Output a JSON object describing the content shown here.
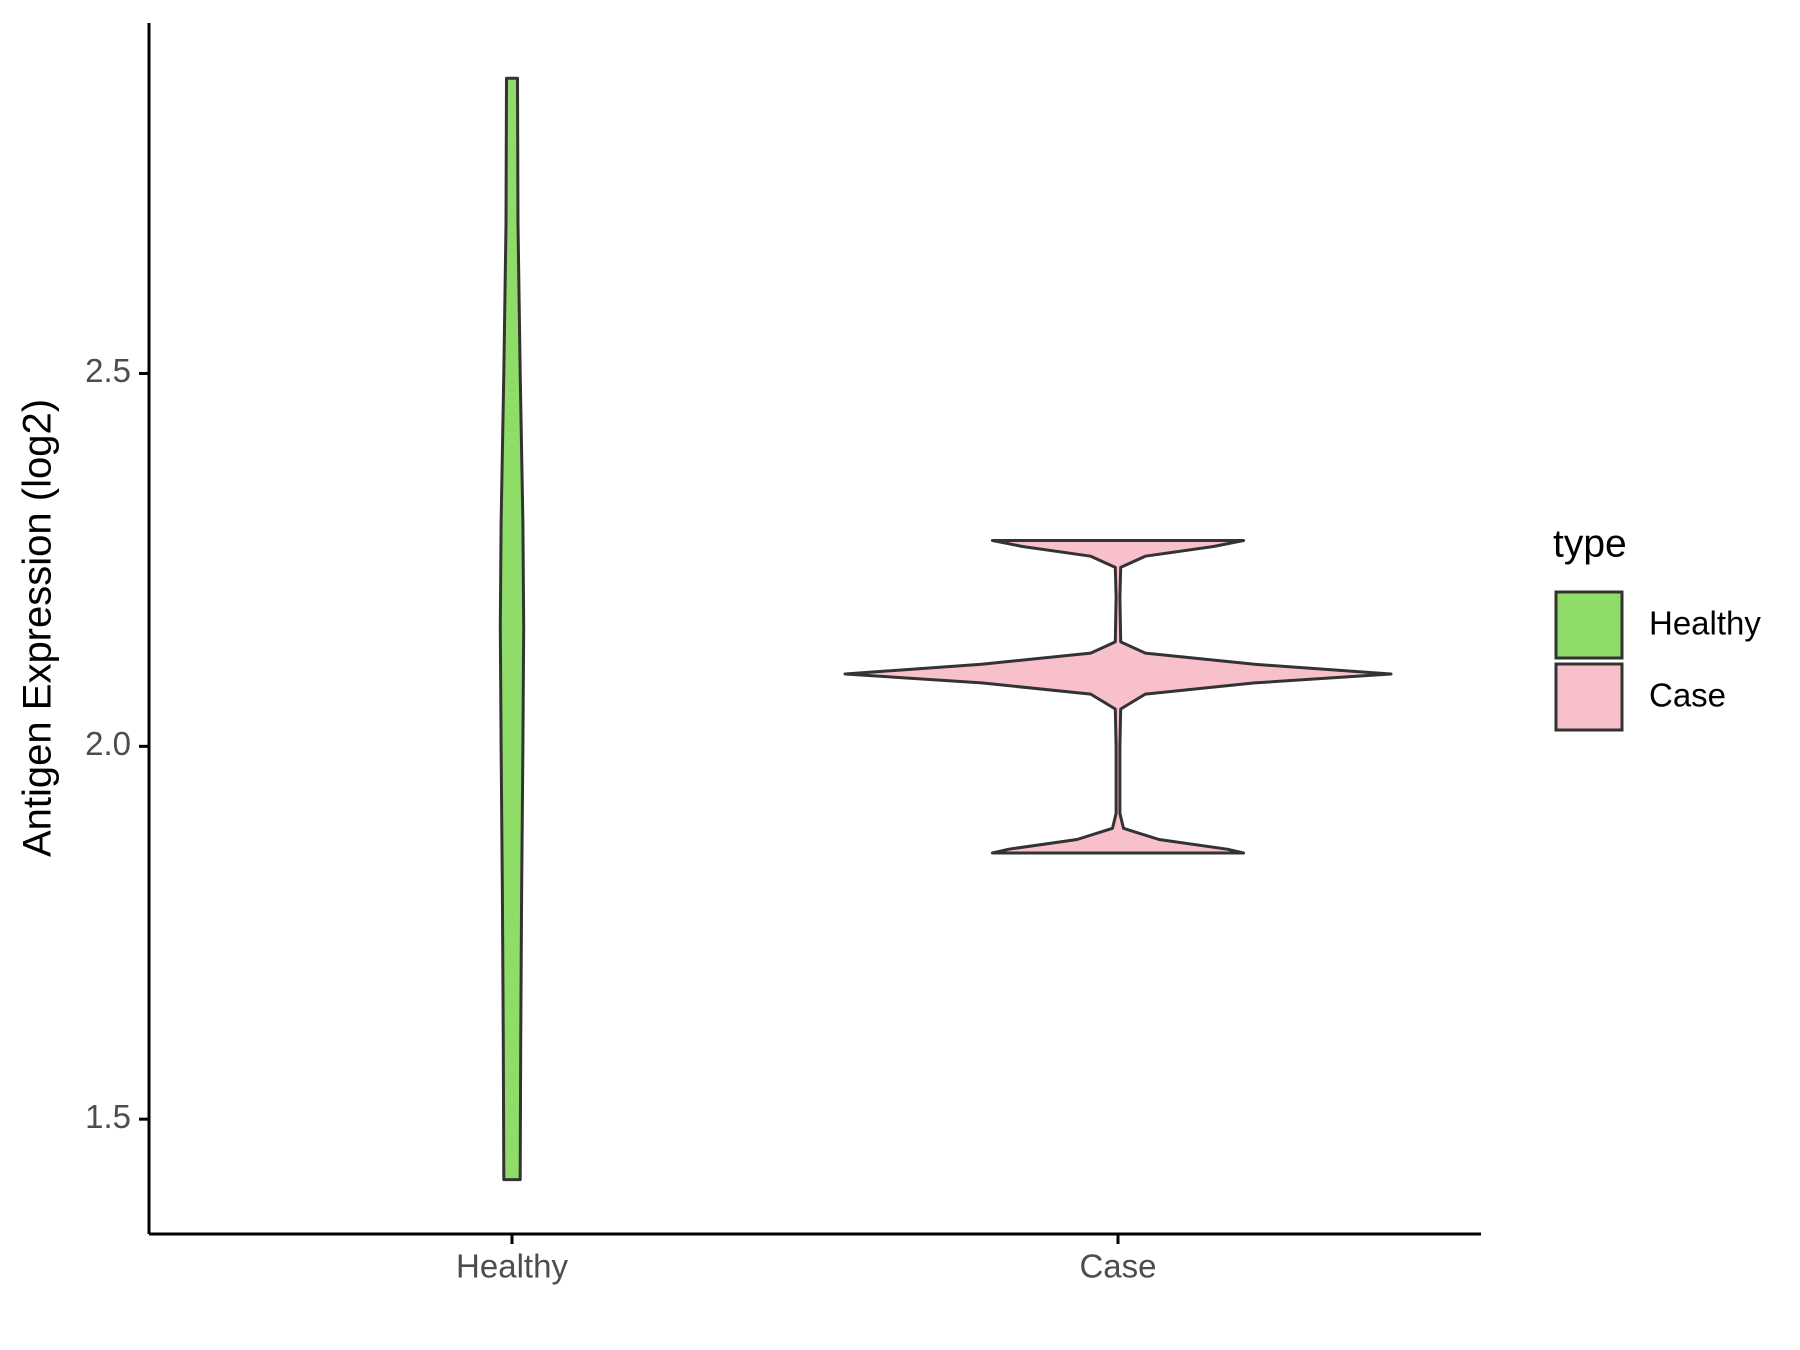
{
  "chart_data": {
    "type": "violin",
    "y_label": "Antigen Expression (log2)",
    "categories": [
      "Healthy",
      "Case"
    ],
    "legend_title": "type",
    "series": [
      {
        "name": "Healthy",
        "color": "#8fdc68",
        "y": [
          1.419,
          1.6,
          1.8,
          2.0,
          2.16,
          2.3,
          2.5,
          2.7,
          2.896
        ],
        "width": [
          0.03,
          0.032,
          0.035,
          0.04,
          0.043,
          0.04,
          0.03,
          0.022,
          0.02
        ]
      },
      {
        "name": "Case",
        "color": "#f8c0cb",
        "y": [
          1.857,
          1.862,
          1.875,
          1.89,
          1.91,
          2.0,
          2.05,
          2.07,
          2.085,
          2.097,
          2.11,
          2.125,
          2.14,
          2.2,
          2.24,
          2.255,
          2.268,
          2.276
        ],
        "width": [
          0.46,
          0.4,
          0.15,
          0.02,
          0.007,
          0.007,
          0.01,
          0.1,
          0.5,
          1.0,
          0.5,
          0.1,
          0.01,
          0.007,
          0.01,
          0.1,
          0.35,
          0.46
        ]
      }
    ],
    "ylim": [
      1.346,
      2.97
    ],
    "yticks": [
      1.5,
      {
        "value": 2.0,
        "label": "2.0"
      },
      2.5
    ]
  }
}
